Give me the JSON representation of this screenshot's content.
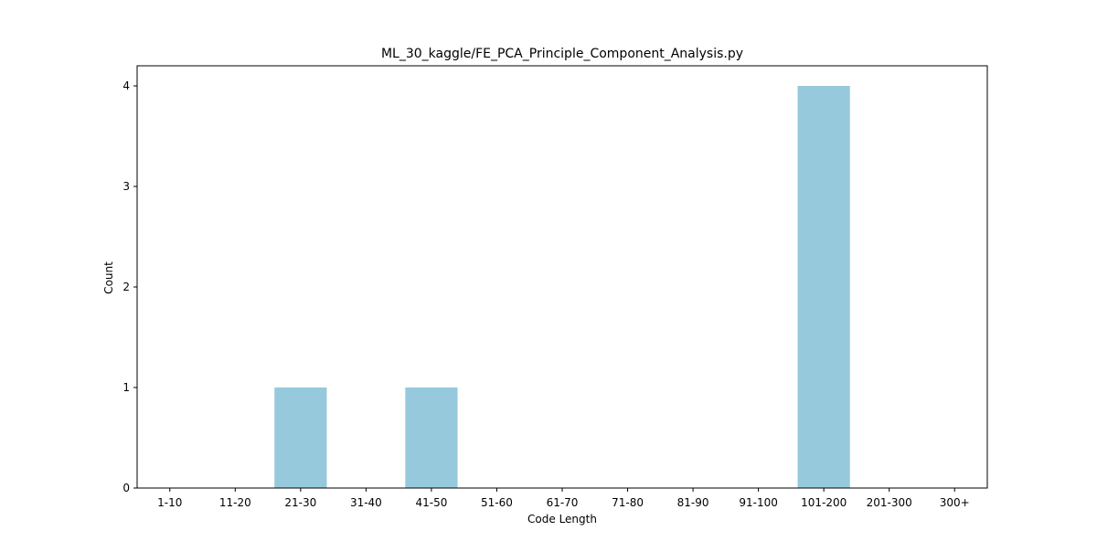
{
  "chart_data": {
    "type": "bar",
    "title": "ML_30_kaggle/FE_PCA_Principle_Component_Analysis.py",
    "xlabel": "Code Length",
    "ylabel": "Count",
    "categories": [
      "1-10",
      "11-20",
      "21-30",
      "31-40",
      "41-50",
      "51-60",
      "61-70",
      "71-80",
      "81-90",
      "91-100",
      "101-200",
      "201-300",
      "300+"
    ],
    "values": [
      0,
      0,
      1,
      0,
      1,
      0,
      0,
      0,
      0,
      0,
      4,
      0,
      0
    ],
    "ylim": [
      0,
      4.2
    ],
    "yticks": [
      0,
      1,
      2,
      3,
      4
    ],
    "bar_color": "#96c9dc",
    "grid": false,
    "legend": "none"
  }
}
